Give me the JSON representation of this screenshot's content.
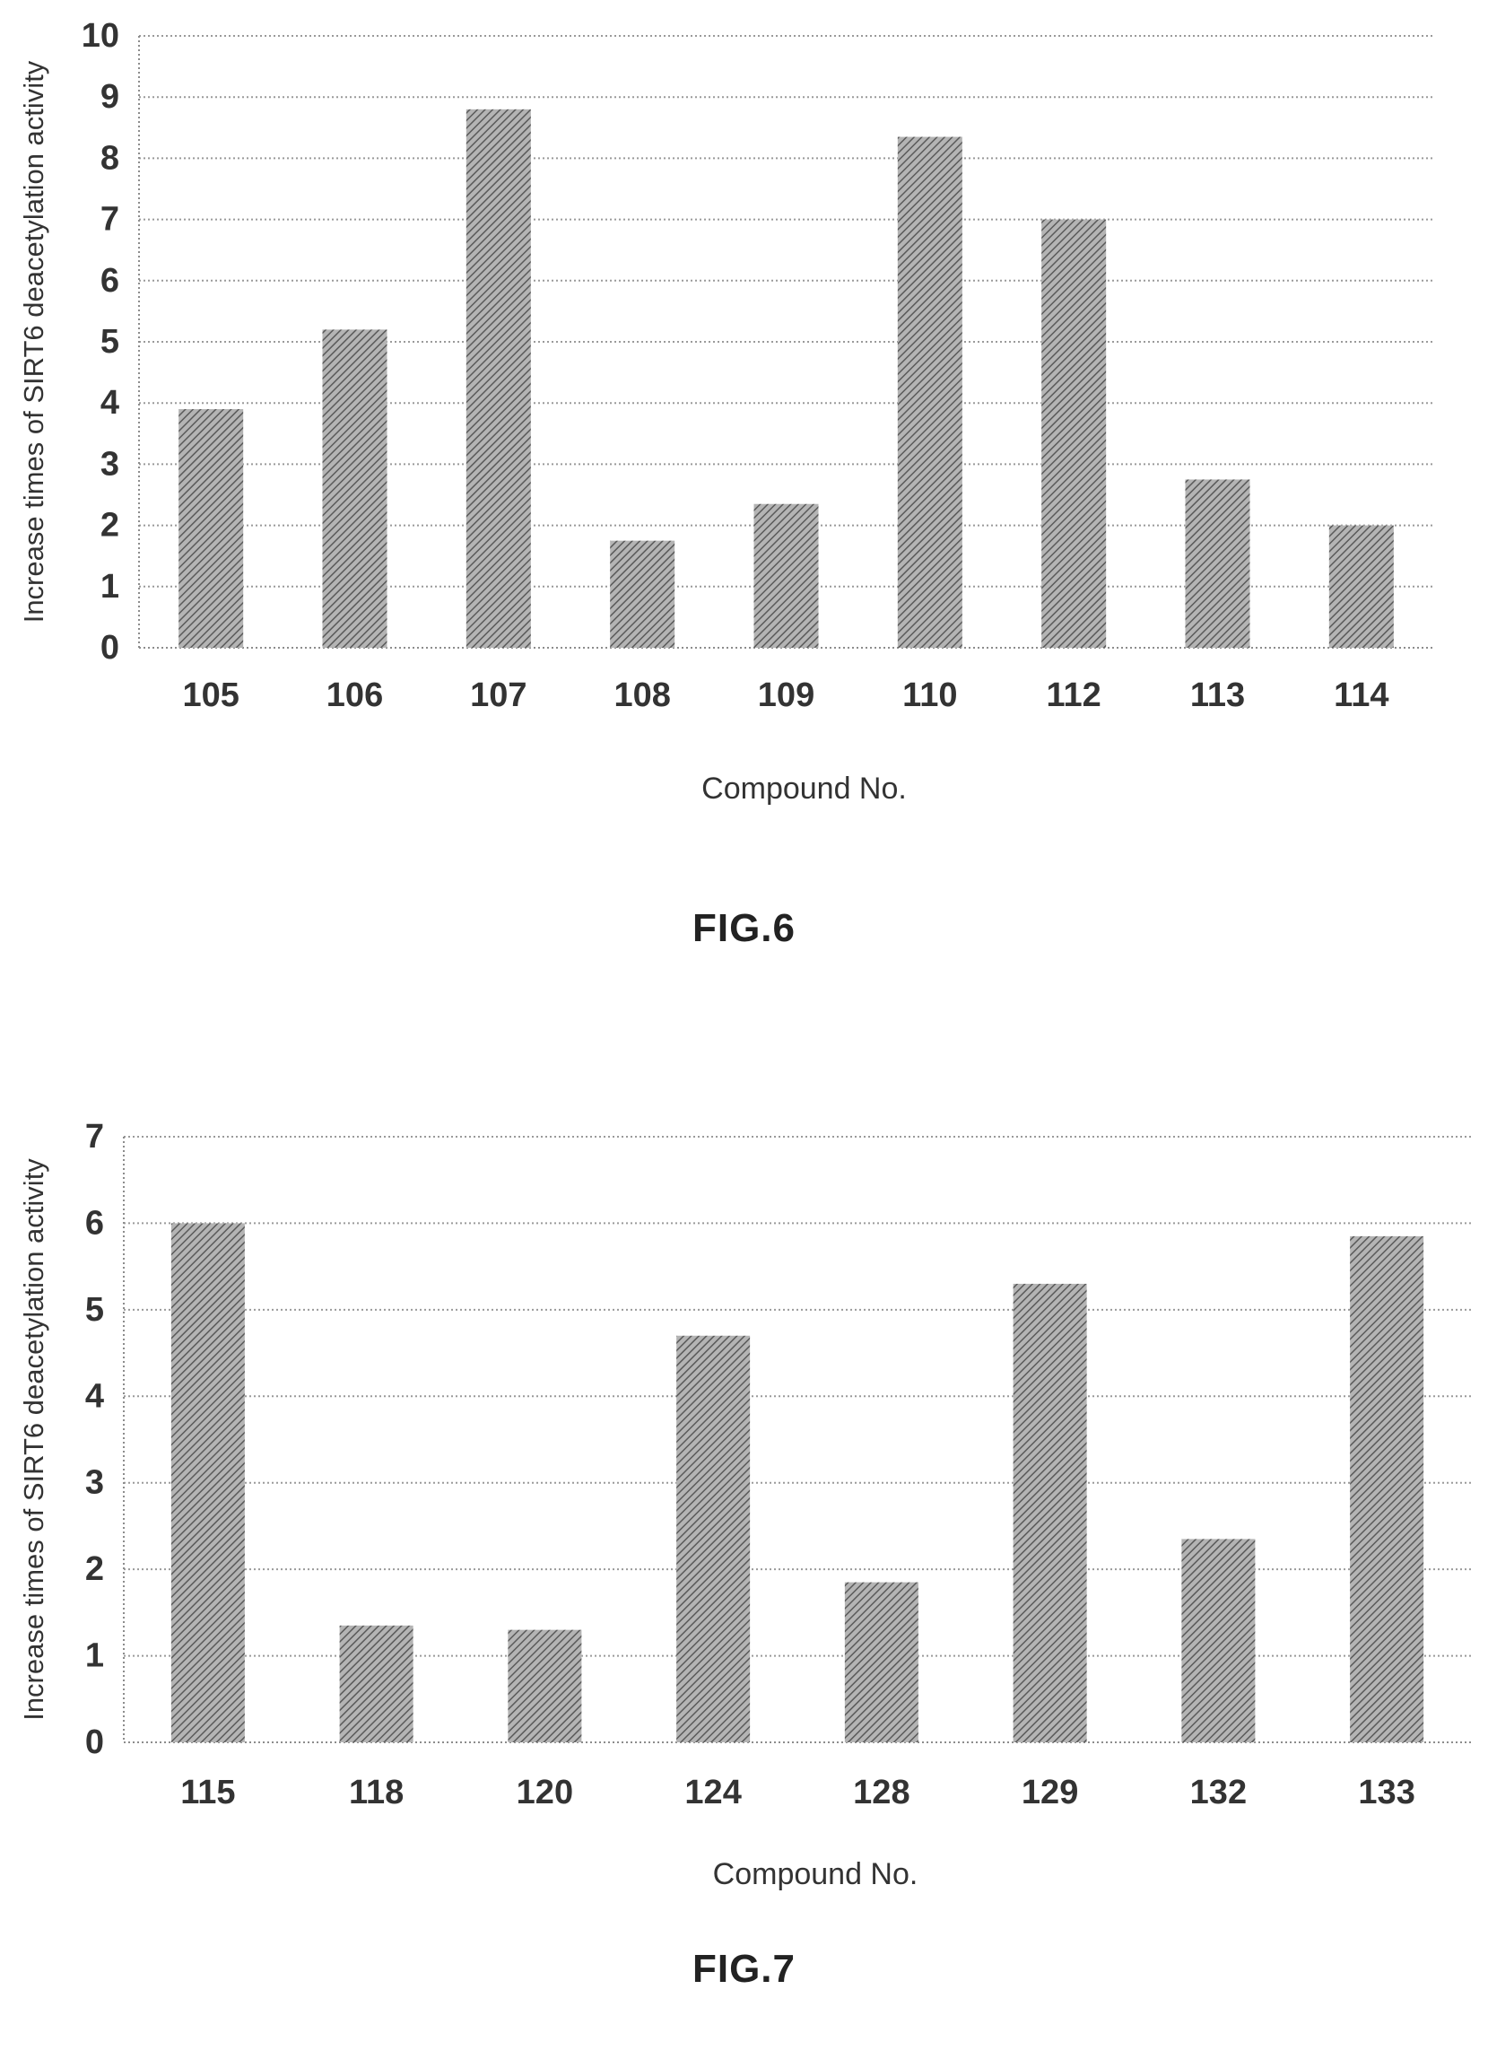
{
  "figures": [
    {
      "caption": "FIG.6",
      "chart_data": {
        "type": "bar",
        "categories": [
          "105",
          "106",
          "107",
          "108",
          "109",
          "110",
          "112",
          "113",
          "114"
        ],
        "values": [
          3.9,
          5.2,
          8.8,
          1.75,
          2.35,
          8.35,
          7.0,
          2.75,
          2.0
        ],
        "xlabel": "Compound No.",
        "ylabel": "Increase times of SIRT6 deacetylation activity",
        "ylim": [
          0,
          10
        ],
        "yticks": [
          0,
          1,
          2,
          3,
          4,
          5,
          6,
          7,
          8,
          9,
          10
        ],
        "grid": true,
        "bar_color": "#8a8a8a"
      }
    },
    {
      "caption": "FIG.7",
      "chart_data": {
        "type": "bar",
        "categories": [
          "115",
          "118",
          "120",
          "124",
          "128",
          "129",
          "132",
          "133"
        ],
        "values": [
          6.0,
          1.35,
          1.3,
          4.7,
          1.85,
          5.3,
          2.35,
          5.85
        ],
        "xlabel": "Compound No.",
        "ylabel": "Increase times of SIRT6 deacetylation activity",
        "ylim": [
          0,
          7
        ],
        "yticks": [
          0,
          1,
          2,
          3,
          4,
          5,
          6,
          7
        ],
        "grid": true,
        "bar_color": "#8a8a8a"
      }
    }
  ]
}
